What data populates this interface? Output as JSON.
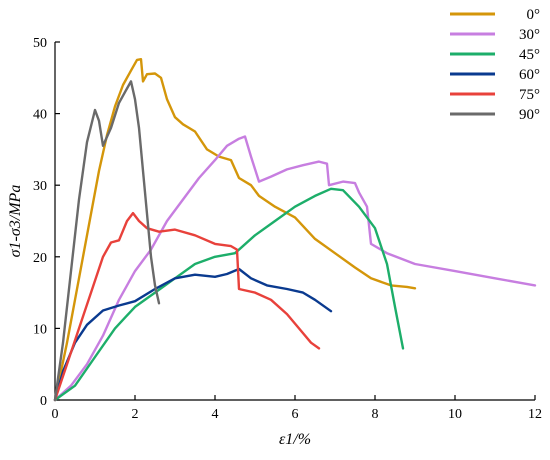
{
  "chart_data": {
    "type": "line",
    "xlabel": "ε1/%",
    "ylabel": "σ1-σ3/MPa",
    "xlim": [
      0,
      12
    ],
    "ylim": [
      0,
      50
    ],
    "xticks": [
      0,
      2,
      4,
      6,
      8,
      10,
      12
    ],
    "yticks": [
      0,
      10,
      20,
      30,
      40,
      50
    ],
    "grid": false,
    "legend": "top-right",
    "series": [
      {
        "name": "0°",
        "color": "#D4960A",
        "points": [
          [
            0,
            0
          ],
          [
            0.15,
            4
          ],
          [
            0.3,
            8
          ],
          [
            0.5,
            14
          ],
          [
            0.7,
            20
          ],
          [
            0.9,
            26
          ],
          [
            1.1,
            32
          ],
          [
            1.3,
            37
          ],
          [
            1.5,
            41
          ],
          [
            1.7,
            44
          ],
          [
            1.9,
            46
          ],
          [
            2.05,
            47.5
          ],
          [
            2.15,
            47.6
          ],
          [
            2.2,
            44.5
          ],
          [
            2.3,
            45.5
          ],
          [
            2.5,
            45.6
          ],
          [
            2.65,
            45
          ],
          [
            2.8,
            42
          ],
          [
            3.0,
            39.5
          ],
          [
            3.2,
            38.5
          ],
          [
            3.5,
            37.5
          ],
          [
            3.8,
            35
          ],
          [
            4.1,
            34
          ],
          [
            4.4,
            33.5
          ],
          [
            4.6,
            31
          ],
          [
            4.9,
            30
          ],
          [
            5.1,
            28.5
          ],
          [
            5.5,
            27
          ],
          [
            6.0,
            25.5
          ],
          [
            6.5,
            22.5
          ],
          [
            7.0,
            20.5
          ],
          [
            7.5,
            18.5
          ],
          [
            7.9,
            17
          ],
          [
            8.4,
            16
          ],
          [
            8.8,
            15.8
          ],
          [
            9.0,
            15.6
          ]
        ]
      },
      {
        "name": "30°",
        "color": "#C77EE0",
        "points": [
          [
            0,
            0
          ],
          [
            0.4,
            2
          ],
          [
            0.8,
            5
          ],
          [
            1.2,
            9
          ],
          [
            1.6,
            14
          ],
          [
            2.0,
            18
          ],
          [
            2.4,
            21
          ],
          [
            2.8,
            25
          ],
          [
            3.2,
            28
          ],
          [
            3.6,
            31
          ],
          [
            4.0,
            33.5
          ],
          [
            4.3,
            35.5
          ],
          [
            4.6,
            36.5
          ],
          [
            4.75,
            36.8
          ],
          [
            4.9,
            34
          ],
          [
            5.1,
            30.5
          ],
          [
            5.4,
            31.2
          ],
          [
            5.8,
            32.2
          ],
          [
            6.2,
            32.8
          ],
          [
            6.6,
            33.3
          ],
          [
            6.8,
            33
          ],
          [
            6.85,
            30
          ],
          [
            7.2,
            30.5
          ],
          [
            7.5,
            30.3
          ],
          [
            7.6,
            29
          ],
          [
            7.8,
            27
          ],
          [
            7.9,
            21.8
          ],
          [
            8.3,
            20.5
          ],
          [
            9.0,
            19
          ],
          [
            10,
            18
          ],
          [
            11,
            17
          ],
          [
            12,
            16
          ]
        ]
      },
      {
        "name": "45°",
        "color": "#1DAE6A",
        "points": [
          [
            0,
            0
          ],
          [
            0.5,
            2
          ],
          [
            1.0,
            6
          ],
          [
            1.5,
            10
          ],
          [
            2.0,
            13
          ],
          [
            2.5,
            15
          ],
          [
            3.0,
            17
          ],
          [
            3.5,
            19
          ],
          [
            4.0,
            20
          ],
          [
            4.5,
            20.5
          ],
          [
            5.0,
            23
          ],
          [
            5.5,
            25
          ],
          [
            6.0,
            27
          ],
          [
            6.5,
            28.5
          ],
          [
            6.9,
            29.5
          ],
          [
            7.2,
            29.3
          ],
          [
            7.6,
            27
          ],
          [
            8.0,
            24
          ],
          [
            8.3,
            19
          ],
          [
            8.5,
            13
          ],
          [
            8.7,
            7.2
          ]
        ]
      },
      {
        "name": "60°",
        "color": "#0A3A8F",
        "points": [
          [
            0,
            0
          ],
          [
            0.2,
            4
          ],
          [
            0.5,
            8
          ],
          [
            0.8,
            10.5
          ],
          [
            1.2,
            12.5
          ],
          [
            1.6,
            13.2
          ],
          [
            2.0,
            13.8
          ],
          [
            2.5,
            15.5
          ],
          [
            3.0,
            17
          ],
          [
            3.5,
            17.5
          ],
          [
            4.0,
            17.2
          ],
          [
            4.3,
            17.6
          ],
          [
            4.6,
            18.3
          ],
          [
            4.9,
            17
          ],
          [
            5.3,
            16
          ],
          [
            5.8,
            15.5
          ],
          [
            6.2,
            15
          ],
          [
            6.5,
            14
          ],
          [
            6.9,
            12.4
          ]
        ]
      },
      {
        "name": "75°",
        "color": "#E8413B",
        "points": [
          [
            0,
            0
          ],
          [
            0.3,
            5
          ],
          [
            0.6,
            10
          ],
          [
            0.9,
            15
          ],
          [
            1.2,
            20
          ],
          [
            1.4,
            22
          ],
          [
            1.6,
            22.3
          ],
          [
            1.8,
            25
          ],
          [
            1.95,
            26.1
          ],
          [
            2.1,
            25
          ],
          [
            2.3,
            24
          ],
          [
            2.6,
            23.5
          ],
          [
            3.0,
            23.8
          ],
          [
            3.5,
            23
          ],
          [
            4.0,
            21.8
          ],
          [
            4.4,
            21.5
          ],
          [
            4.55,
            21
          ],
          [
            4.6,
            15.5
          ],
          [
            5.0,
            15
          ],
          [
            5.4,
            14
          ],
          [
            5.8,
            12
          ],
          [
            6.1,
            10
          ],
          [
            6.4,
            8
          ],
          [
            6.6,
            7.2
          ]
        ]
      },
      {
        "name": "90°",
        "color": "#6A6A6A",
        "points": [
          [
            0,
            0
          ],
          [
            0.2,
            8
          ],
          [
            0.4,
            18
          ],
          [
            0.6,
            28
          ],
          [
            0.8,
            36
          ],
          [
            1.0,
            40.5
          ],
          [
            1.1,
            39
          ],
          [
            1.2,
            35.5
          ],
          [
            1.4,
            38
          ],
          [
            1.6,
            41.5
          ],
          [
            1.8,
            43.5
          ],
          [
            1.9,
            44.5
          ],
          [
            2.0,
            42
          ],
          [
            2.1,
            38
          ],
          [
            2.2,
            32
          ],
          [
            2.3,
            26
          ],
          [
            2.4,
            20
          ],
          [
            2.5,
            16
          ],
          [
            2.6,
            13.5
          ]
        ]
      }
    ]
  }
}
